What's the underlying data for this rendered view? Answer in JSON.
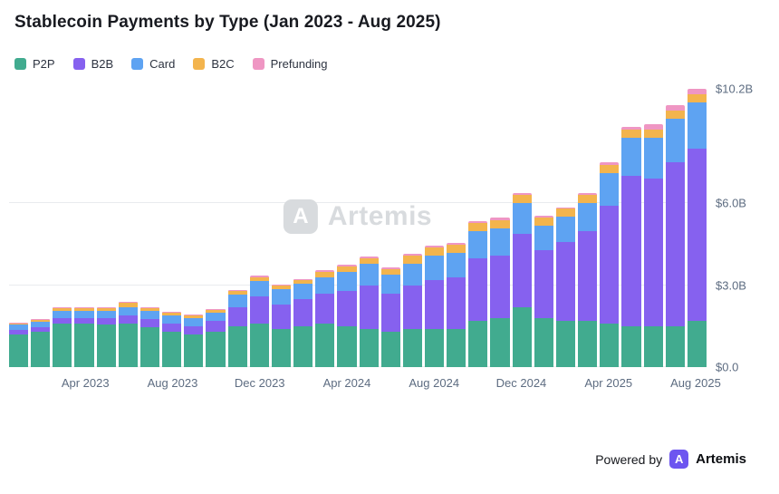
{
  "watermark": {
    "text": "Artemis",
    "logo": "artemis-logo-mark"
  },
  "footer": {
    "powered_by": "Powered by",
    "brand": "Artemis",
    "logo": "artemis-logo-mark"
  },
  "chart_data": {
    "type": "bar",
    "stacked": true,
    "title": "Stablecoin Payments by Type (Jan 2023 - Aug 2025)",
    "unit": "USD billions",
    "legend_position": "top-left",
    "grid": "horizontal",
    "ylim": [
      0,
      10.2
    ],
    "y_ticks": [
      {
        "value": 0,
        "label": "$0.0"
      },
      {
        "value": 3,
        "label": "$3.0B"
      },
      {
        "value": 6,
        "label": "$6.0B"
      },
      {
        "value": 10.2,
        "label": "$10.2B"
      }
    ],
    "x": [
      "Jan 2023",
      "Feb 2023",
      "Mar 2023",
      "Apr 2023",
      "May 2023",
      "Jun 2023",
      "Jul 2023",
      "Aug 2023",
      "Sep 2023",
      "Oct 2023",
      "Nov 2023",
      "Dec 2023",
      "Jan 2024",
      "Feb 2024",
      "Mar 2024",
      "Apr 2024",
      "May 2024",
      "Jun 2024",
      "Jul 2024",
      "Aug 2024",
      "Sep 2024",
      "Oct 2024",
      "Nov 2024",
      "Dec 2024",
      "Jan 2025",
      "Feb 2025",
      "Mar 2025",
      "Apr 2025",
      "May 2025",
      "Jun 2025",
      "Jul 2025",
      "Aug 2025"
    ],
    "x_tick_labels": [
      "Apr 2023",
      "Aug 2023",
      "Dec 2023",
      "Apr 2024",
      "Aug 2024",
      "Dec 2024",
      "Apr 2025",
      "Aug 2025"
    ],
    "series": [
      {
        "name": "P2P",
        "color": "#41ab8f",
        "values": [
          1.2,
          1.3,
          1.6,
          1.6,
          1.55,
          1.6,
          1.45,
          1.3,
          1.2,
          1.3,
          1.5,
          1.6,
          1.4,
          1.5,
          1.6,
          1.5,
          1.4,
          1.3,
          1.4,
          1.4,
          1.4,
          1.7,
          1.8,
          2.2,
          1.8,
          1.7,
          1.7,
          1.6,
          1.5,
          1.5,
          1.5,
          1.7
        ]
      },
      {
        "name": "B2B",
        "color": "#8661ef",
        "values": [
          0.15,
          0.15,
          0.2,
          0.2,
          0.25,
          0.3,
          0.3,
          0.3,
          0.3,
          0.4,
          0.7,
          1.0,
          0.9,
          1.0,
          1.1,
          1.3,
          1.6,
          1.4,
          1.6,
          1.8,
          1.9,
          2.3,
          2.3,
          2.7,
          2.5,
          2.9,
          3.3,
          4.3,
          5.5,
          5.4,
          6.0,
          6.3
        ]
      },
      {
        "name": "Card",
        "color": "#5ea3f2",
        "values": [
          0.2,
          0.2,
          0.25,
          0.25,
          0.25,
          0.3,
          0.3,
          0.3,
          0.3,
          0.3,
          0.45,
          0.55,
          0.55,
          0.55,
          0.6,
          0.7,
          0.8,
          0.7,
          0.8,
          0.9,
          0.9,
          1.0,
          1.0,
          1.1,
          0.9,
          0.9,
          1.0,
          1.2,
          1.4,
          1.5,
          1.6,
          1.7
        ]
      },
      {
        "name": "B2C",
        "color": "#f3b44d",
        "values": [
          0.05,
          0.08,
          0.1,
          0.1,
          0.12,
          0.15,
          0.12,
          0.1,
          0.1,
          0.1,
          0.15,
          0.15,
          0.15,
          0.15,
          0.2,
          0.2,
          0.2,
          0.2,
          0.3,
          0.3,
          0.3,
          0.3,
          0.3,
          0.3,
          0.3,
          0.3,
          0.3,
          0.3,
          0.3,
          0.3,
          0.3,
          0.3
        ]
      },
      {
        "name": "Prefunding",
        "color": "#ef96c3",
        "values": [
          0.02,
          0.02,
          0.03,
          0.03,
          0.03,
          0.03,
          0.03,
          0.02,
          0.02,
          0.02,
          0.03,
          0.05,
          0.04,
          0.04,
          0.05,
          0.05,
          0.05,
          0.05,
          0.05,
          0.05,
          0.05,
          0.05,
          0.08,
          0.08,
          0.05,
          0.05,
          0.08,
          0.1,
          0.1,
          0.2,
          0.2,
          0.2
        ]
      }
    ]
  }
}
